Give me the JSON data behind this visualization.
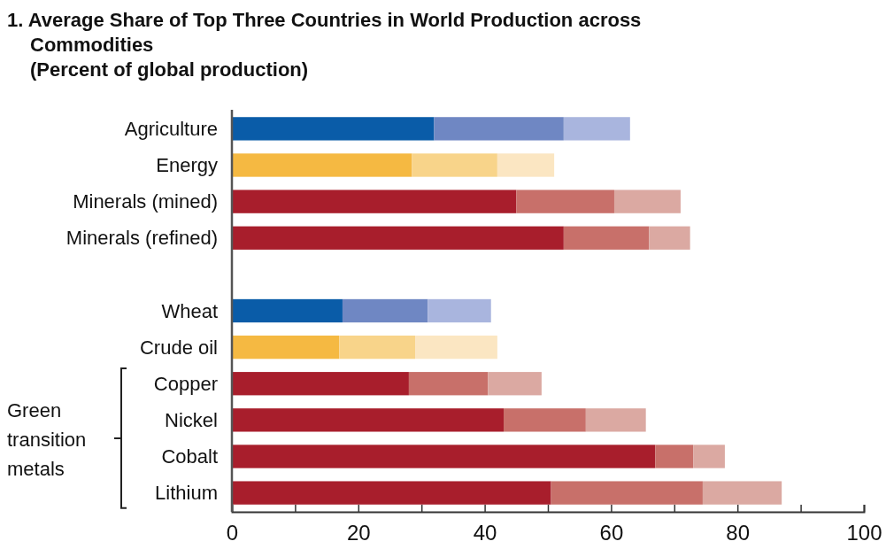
{
  "chart_data": {
    "type": "bar",
    "orientation": "horizontal",
    "stacked": true,
    "title": "1. Average Share of Top Three Countries in World Production across Commodities",
    "subtitle": "(Percent of global production)",
    "categories": [
      "Agriculture",
      "Energy",
      "Minerals (mined)",
      "Minerals (refined)",
      null,
      "Wheat",
      "Crude oil",
      "Copper",
      "Nickel",
      "Cobalt",
      "Lithium"
    ],
    "series": [
      {
        "values": [
          32,
          28.5,
          45,
          52.5,
          null,
          17.5,
          17,
          28,
          43,
          67,
          50.5
        ],
        "colors": [
          "#0a5ca8",
          "#f5b942",
          "#a81e2c",
          "#a81e2c",
          "#a81e2c",
          "#0a5ca8",
          "#f5b942",
          "#a81e2c",
          "#a81e2c",
          "#a81e2c",
          "#a81e2c"
        ]
      },
      {
        "values": [
          20.5,
          13.5,
          15.5,
          13.5,
          null,
          13.5,
          12,
          12.5,
          13,
          6,
          24
        ],
        "colors": [
          "#6f87c3",
          "#f8d48a",
          "#c8706a",
          "#c8706a",
          "#c8706a",
          "#6f87c3",
          "#f8d48a",
          "#c8706a",
          "#c8706a",
          "#c8706a",
          "#c8706a"
        ]
      },
      {
        "values": [
          10.5,
          9,
          10.5,
          6.5,
          null,
          10,
          13,
          8.5,
          9.5,
          5,
          12.5
        ],
        "colors": [
          "#a9b5de",
          "#fbe6c2",
          "#dba9a2",
          "#dba9a2",
          "#dba9a2",
          "#a9b5de",
          "#fbe6c2",
          "#dba9a2",
          "#dba9a2",
          "#dba9a2",
          "#dba9a2"
        ]
      }
    ],
    "xlim": [
      0,
      100
    ],
    "xticks": [
      0,
      {
        "value": 10,
        "label": null
      },
      20,
      {
        "value": 30,
        "label": null
      },
      40,
      {
        "value": 50,
        "label": null
      },
      60,
      {
        "value": 70,
        "label": null
      },
      80,
      {
        "value": 90,
        "label": null
      },
      100
    ],
    "annotations": [
      "Green transition metals"
    ],
    "grid": false
  }
}
